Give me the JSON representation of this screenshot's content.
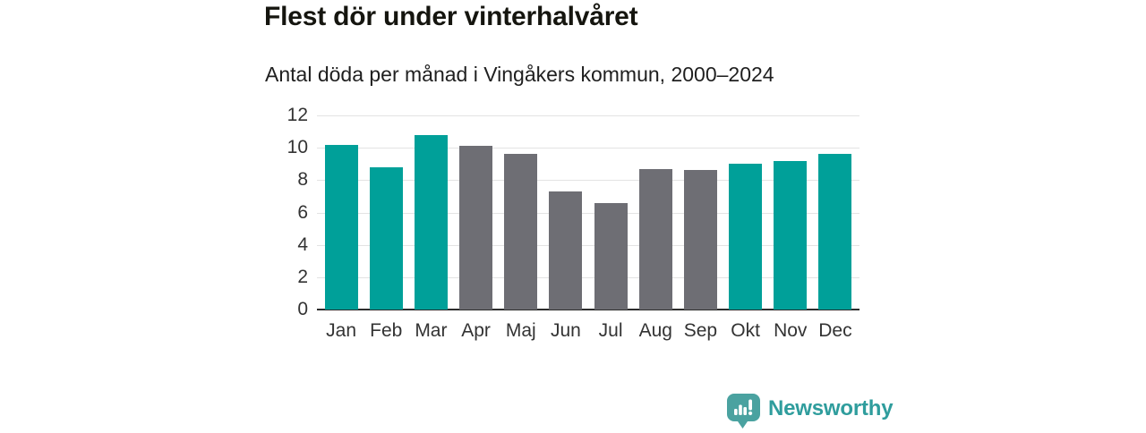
{
  "header": {
    "title": "Flest dör under vinterhalvåret",
    "subtitle": "Antal döda per månad i Vingåkers kommun, 2000–2024"
  },
  "chart_data": {
    "type": "bar",
    "title": "Flest dör under vinterhalvåret",
    "subtitle": "Antal döda per månad i Vingåkers kommun, 2000–2024",
    "categories": [
      "Jan",
      "Feb",
      "Mar",
      "Apr",
      "Maj",
      "Jun",
      "Jul",
      "Aug",
      "Sep",
      "Okt",
      "Nov",
      "Dec"
    ],
    "values": [
      10.2,
      8.8,
      10.8,
      10.1,
      9.6,
      7.3,
      6.6,
      8.7,
      8.6,
      9.0,
      9.2,
      9.6
    ],
    "groups": [
      "winter",
      "winter",
      "winter",
      "summer",
      "summer",
      "summer",
      "summer",
      "summer",
      "summer",
      "winter",
      "winter",
      "winter"
    ],
    "palette": {
      "winter": "#00a099",
      "summer": "#6e6e74"
    },
    "xlabel": "",
    "ylabel": "",
    "ylim": [
      0,
      12
    ],
    "yticks": [
      0,
      2,
      4,
      6,
      8,
      10,
      12
    ],
    "grid": true,
    "legend": false,
    "gridline_color": "#e3e3e3",
    "axis_color": "#2d2d2d",
    "tick_label_color": "#333333"
  },
  "branding": {
    "logo_text": "Newsworthy",
    "text_color": "#2f9d9d",
    "icon_color": "#4aa2a0"
  }
}
